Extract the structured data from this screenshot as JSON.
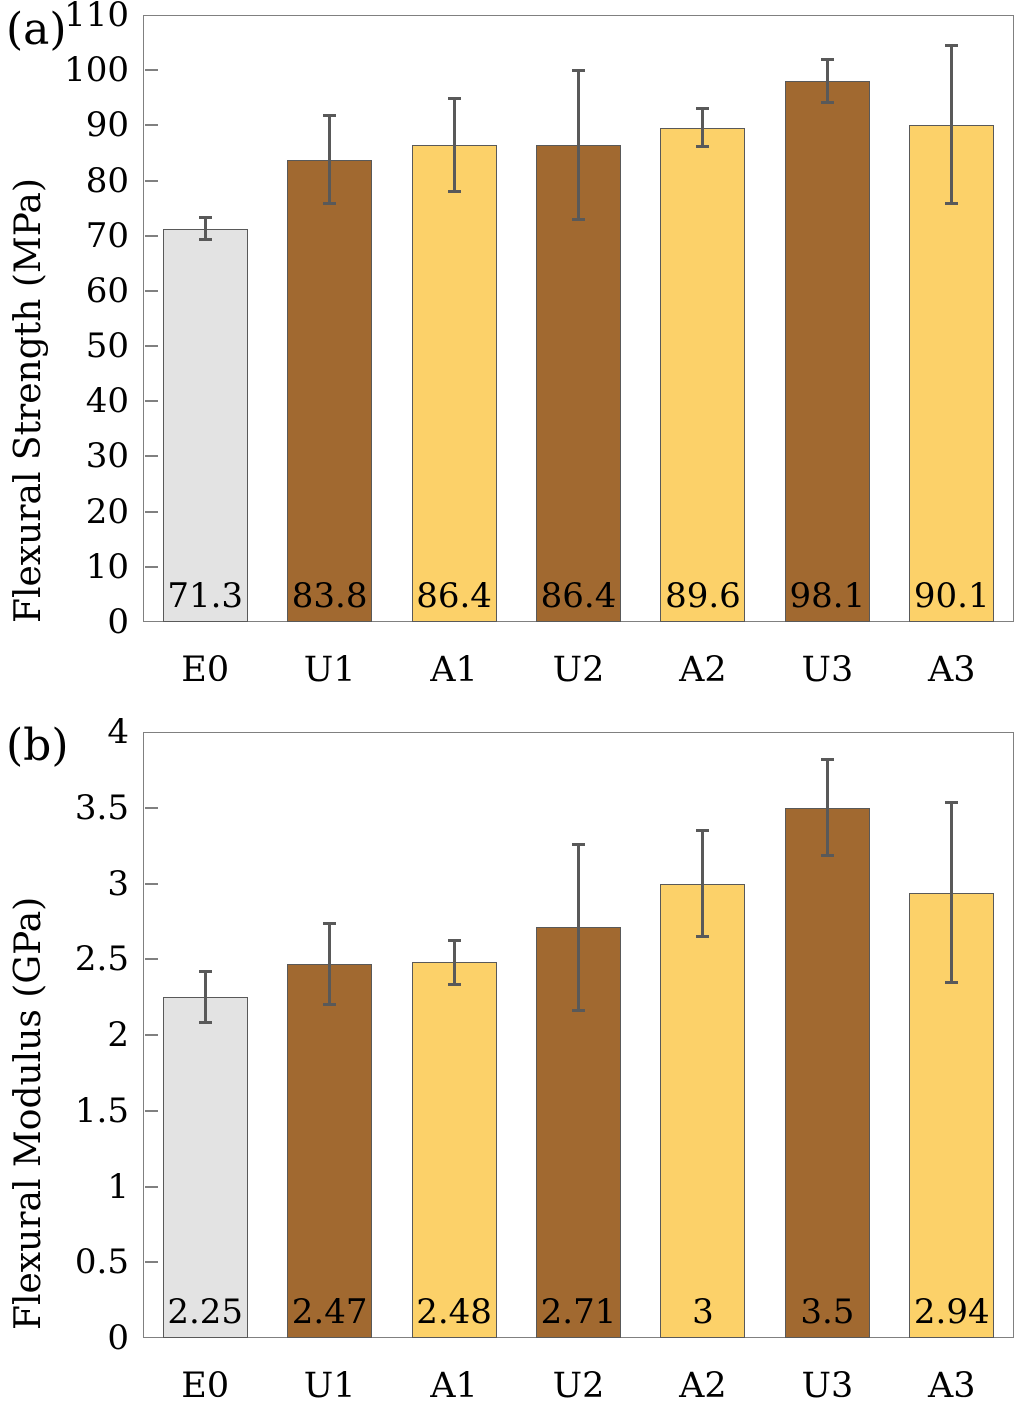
{
  "page": {
    "background": "#ffffff"
  },
  "colors": {
    "bar_gray": "#e3e3e3",
    "bar_brown": "#a16930",
    "bar_yellow": "#fcd169",
    "bar_border": "#595959",
    "error_bar": "#595959",
    "axis_line": "#808080",
    "text": "#000000"
  },
  "chart_data": [
    {
      "id": "flexural-strength",
      "panel_label": "(a)",
      "type": "bar",
      "title": "",
      "xlabel": "",
      "ylabel": "Flexural Strength (MPa)",
      "categories": [
        "E0",
        "U1",
        "A1",
        "U2",
        "A2",
        "U3",
        "A3"
      ],
      "values": [
        71.3,
        83.8,
        86.4,
        86.4,
        89.6,
        98.1,
        90.1
      ],
      "value_labels": [
        "71.3",
        "83.8",
        "86.4",
        "86.4",
        "89.6",
        "98.1",
        "90.1"
      ],
      "errors": [
        2.1,
        8.1,
        8.5,
        13.6,
        3.5,
        4.0,
        14.4
      ],
      "bar_color_keys": [
        "bar_gray",
        "bar_brown",
        "bar_yellow",
        "bar_brown",
        "bar_yellow",
        "bar_brown",
        "bar_yellow"
      ],
      "ylim": [
        0,
        110
      ],
      "ytick_step": 10,
      "ytick_labels": [
        "0",
        "10",
        "20",
        "30",
        "40",
        "50",
        "60",
        "70",
        "80",
        "90",
        "100",
        "110"
      ],
      "grid": false,
      "legend": null
    },
    {
      "id": "flexural-modulus",
      "panel_label": "(b)",
      "type": "bar",
      "title": "",
      "xlabel": "",
      "ylabel": "Flexural Modulus (GPa)",
      "categories": [
        "E0",
        "U1",
        "A1",
        "U2",
        "A2",
        "U3",
        "A3"
      ],
      "values": [
        2.25,
        2.47,
        2.48,
        2.71,
        3,
        3.5,
        2.94
      ],
      "value_labels": [
        "2.25",
        "2.47",
        "2.48",
        "2.71",
        "3",
        "3.5",
        "2.94"
      ],
      "errors": [
        0.17,
        0.27,
        0.15,
        0.55,
        0.35,
        0.32,
        0.6
      ],
      "bar_color_keys": [
        "bar_gray",
        "bar_brown",
        "bar_yellow",
        "bar_brown",
        "bar_yellow",
        "bar_brown",
        "bar_yellow"
      ],
      "ylim": [
        0,
        4
      ],
      "ytick_step": 0.5,
      "ytick_labels": [
        "0",
        "0.5",
        "1",
        "1.5",
        "2",
        "2.5",
        "3",
        "3.5",
        "4"
      ],
      "grid": false,
      "legend": null
    }
  ]
}
